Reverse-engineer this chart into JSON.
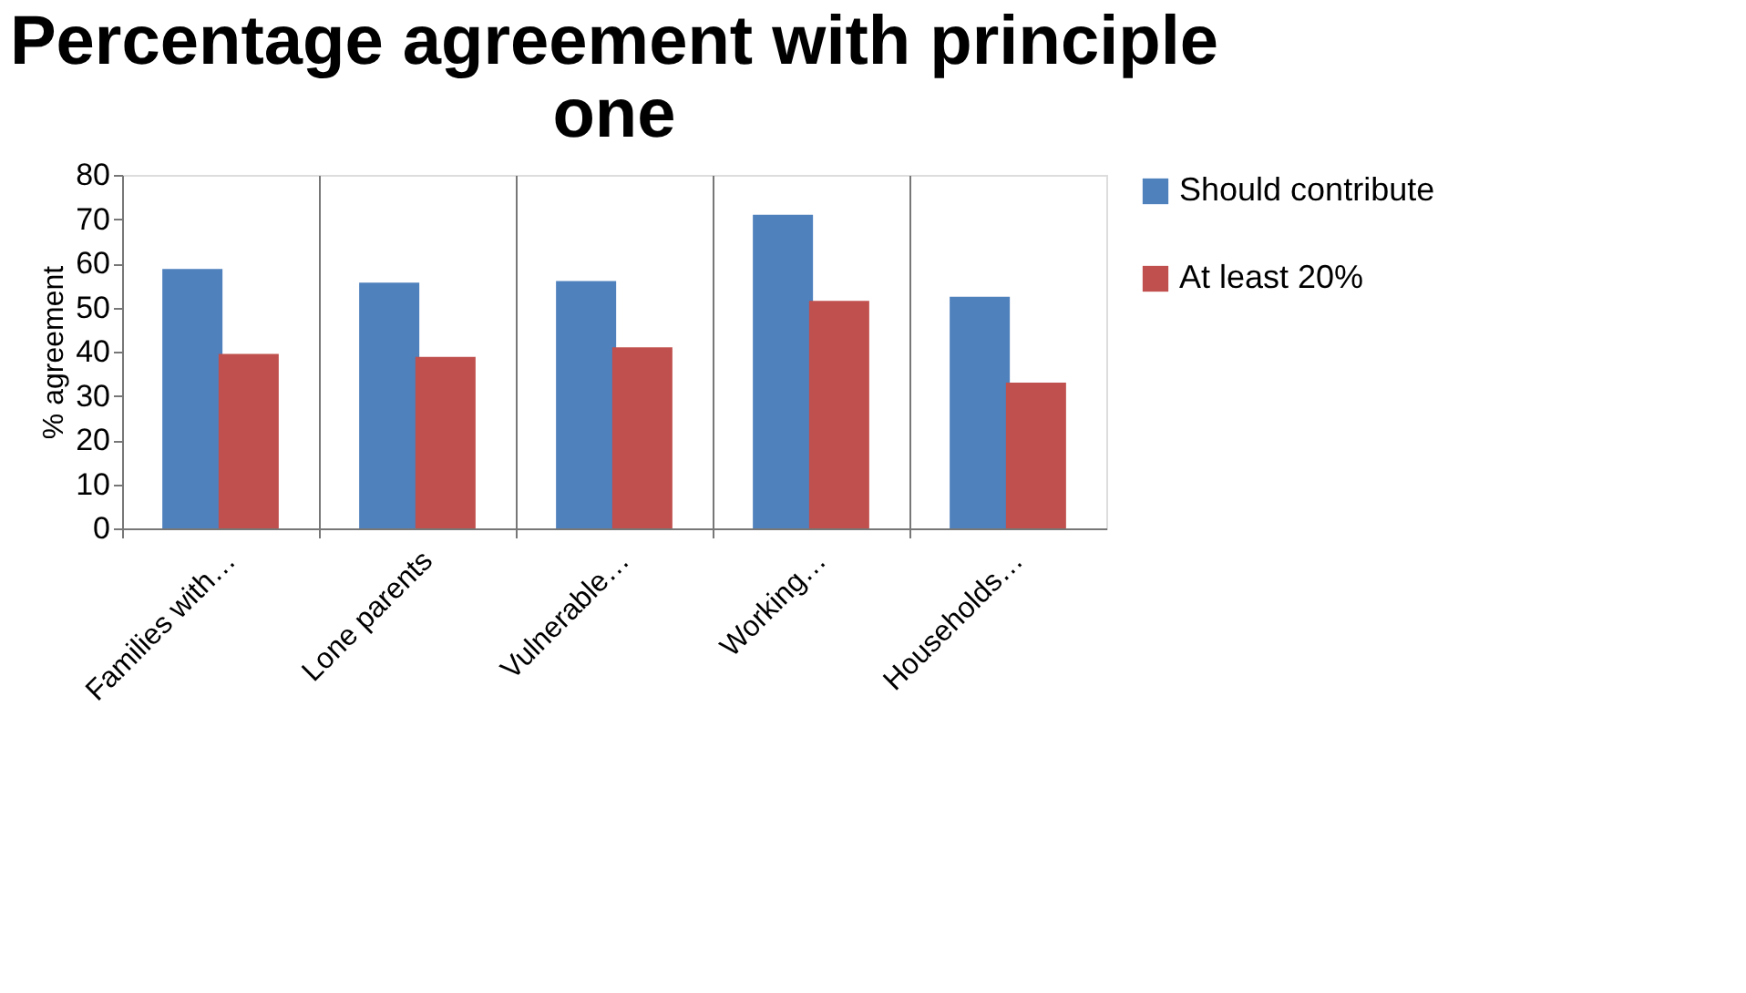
{
  "chart_data": {
    "type": "bar",
    "title": "Percentage agreement with principle one",
    "ylabel": "% agreement",
    "categories": [
      "Families with…",
      "Lone parents",
      "Vulnerable…",
      "Working…",
      "Households…"
    ],
    "series": [
      {
        "name": "Should contribute",
        "color": "#4f81bd",
        "values": [
          58.7,
          55.6,
          56,
          71,
          52.4
        ]
      },
      {
        "name": "At least 20%",
        "color": "#c0504d",
        "values": [
          39.5,
          38.8,
          41,
          51.5,
          33
        ]
      }
    ],
    "ylim": [
      0,
      80
    ],
    "yticks": [
      0,
      10,
      20,
      30,
      40,
      50,
      60,
      70,
      80
    ],
    "grid": "x",
    "legend": "right"
  }
}
